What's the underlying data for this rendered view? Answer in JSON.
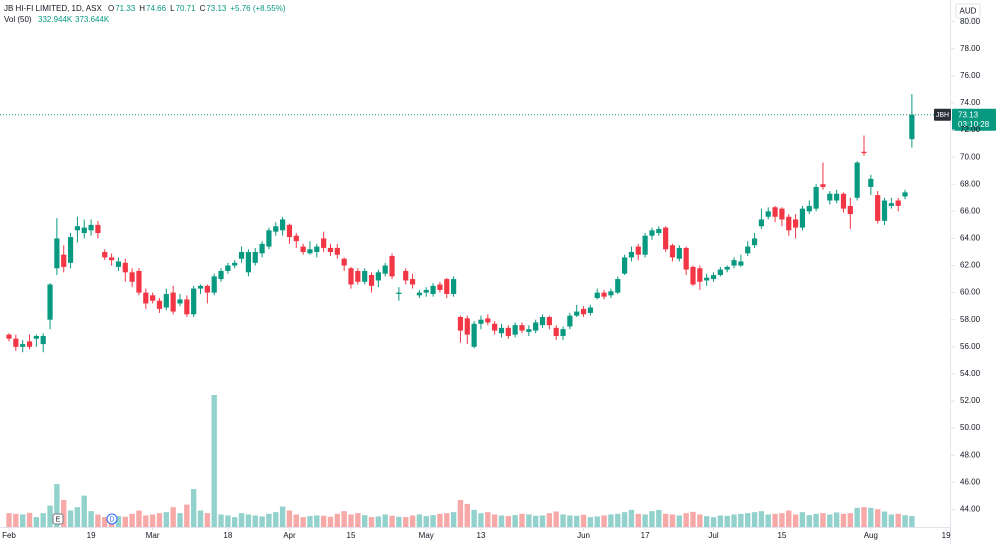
{
  "header": {
    "title": "JB HI-FI LIMITED, 1D, ASX",
    "fields": [
      {
        "key": "O",
        "value": "71.33"
      },
      {
        "key": "H",
        "value": "74.66"
      },
      {
        "key": "L",
        "value": "70.71"
      },
      {
        "key": "C",
        "value": "73.13"
      }
    ],
    "change": "+5.76 (+8.55%)",
    "volume_label": "Vol (50)",
    "volume_values": [
      "332.944K",
      "373.644K"
    ]
  },
  "currency": "AUD",
  "price_tag": {
    "symbol": "JBH",
    "price": "73.13",
    "countdown": "03:10:28"
  },
  "events": [
    {
      "label": "E"
    },
    {
      "label": "D"
    }
  ],
  "chart_data": {
    "type": "candlestick",
    "up_color": "#089981",
    "down_color": "#f23645",
    "volume_up_color": "#93d2cc",
    "volume_down_color": "#f7a9a7",
    "ylim": [
      42.7,
      81.6
    ],
    "yticks": [
      {
        "value": 44,
        "label": "44.00"
      },
      {
        "value": 46,
        "label": "46.00"
      },
      {
        "value": 48,
        "label": "48.00"
      },
      {
        "value": 50,
        "label": "50.00"
      },
      {
        "value": 52,
        "label": "52.00"
      },
      {
        "value": 54,
        "label": "54.00"
      },
      {
        "value": 56,
        "label": "56.00"
      },
      {
        "value": 58,
        "label": "58.00"
      },
      {
        "value": 60,
        "label": "60.00"
      },
      {
        "value": 62,
        "label": "62.00"
      },
      {
        "value": 64,
        "label": "64.00"
      },
      {
        "value": 66,
        "label": "66.00"
      },
      {
        "value": 68,
        "label": "68.00"
      },
      {
        "value": 70,
        "label": "70.00"
      },
      {
        "value": 72,
        "label": "72.00"
      },
      {
        "value": 74,
        "label": "74.00"
      },
      {
        "value": 76,
        "label": "76.00"
      },
      {
        "value": 78,
        "label": "78.00"
      },
      {
        "value": 80,
        "label": "80.00"
      }
    ],
    "xticks": [
      {
        "value": 0,
        "label": "Feb"
      },
      {
        "value": 12,
        "label": "19"
      },
      {
        "value": 21,
        "label": "Mar"
      },
      {
        "value": 32,
        "label": "18"
      },
      {
        "value": 41,
        "label": "Apr"
      },
      {
        "value": 50,
        "label": "15"
      },
      {
        "value": 61,
        "label": "May"
      },
      {
        "value": 69,
        "label": "13"
      },
      {
        "value": 84,
        "label": "Jun"
      },
      {
        "value": 93,
        "label": "17"
      },
      {
        "value": 103,
        "label": "Jul"
      },
      {
        "value": 113,
        "label": "15"
      },
      {
        "value": 126,
        "label": "Aug"
      },
      {
        "value": 137,
        "label": "19"
      }
    ],
    "grid": false,
    "open": [
      56.9,
      56.6,
      56.0,
      56.4,
      56.6,
      56.2,
      58.0,
      61.8,
      62.8,
      62.2,
      64.6,
      64.4,
      64.6,
      65.0,
      63.0,
      62.6,
      61.9,
      62.2,
      61.5,
      61.6,
      60.0,
      59.8,
      59.4,
      58.9,
      60.0,
      59.2,
      59.5,
      58.4,
      60.3,
      60.5,
      60.0,
      61.0,
      61.6,
      62.0,
      62.5,
      61.5,
      62.2,
      62.9,
      63.4,
      64.5,
      64.6,
      65.0,
      64.2,
      63.4,
      62.9,
      63.0,
      64.0,
      63.3,
      63.3,
      62.5,
      61.8,
      61.6,
      60.8,
      61.3,
      60.9,
      61.4,
      62.7,
      59.9,
      61.6,
      61.0,
      59.8,
      60.0,
      59.9,
      60.6,
      61.0,
      59.9,
      58.2,
      58.1,
      56.0,
      57.7,
      58.1,
      57.7,
      57.0,
      57.4,
      56.9,
      57.6,
      57.1,
      57.2,
      57.6,
      58.2,
      57.4,
      56.8,
      57.5,
      58.3,
      58.8,
      58.5,
      59.6,
      60.0,
      59.8,
      60.0,
      61.4,
      62.6,
      63.4,
      62.8,
      64.2,
      64.4,
      64.8,
      63.5,
      62.5,
      63.3,
      61.9,
      61.8,
      60.9,
      61.0,
      61.3,
      61.7,
      62.0,
      62.0,
      62.9,
      63.5,
      64.9,
      65.6,
      66.3,
      66.2,
      65.6,
      65.4,
      64.8,
      66.0,
      66.2,
      68.0,
      66.8,
      66.8,
      67.3,
      66.4,
      67.0,
      70.4,
      67.8,
      67.2,
      65.3,
      66.4,
      66.8,
      67.1,
      71.33
    ],
    "high": [
      57.0,
      56.9,
      56.5,
      56.9,
      56.9,
      57.0,
      60.7,
      65.5,
      63.5,
      64.4,
      65.6,
      65.4,
      65.4,
      65.3,
      63.2,
      62.9,
      62.6,
      62.5,
      61.8,
      61.8,
      60.3,
      60.0,
      59.6,
      60.3,
      60.5,
      59.9,
      59.8,
      60.5,
      60.6,
      60.6,
      61.4,
      61.8,
      62.2,
      62.4,
      63.4,
      63.2,
      63.3,
      63.8,
      64.8,
      65.2,
      65.6,
      65.1,
      64.4,
      63.6,
      63.8,
      63.6,
      64.5,
      63.6,
      63.6,
      62.6,
      61.9,
      61.8,
      61.8,
      61.5,
      61.7,
      62.2,
      62.9,
      60.4,
      61.8,
      61.4,
      60.2,
      60.4,
      60.7,
      60.8,
      61.1,
      61.2,
      58.3,
      58.3,
      57.9,
      58.3,
      58.4,
      57.9,
      57.7,
      57.6,
      57.8,
      57.8,
      57.6,
      58.0,
      58.4,
      58.3,
      57.6,
      57.5,
      58.5,
      59.1,
      59.0,
      59.1,
      60.3,
      60.2,
      60.3,
      61.2,
      62.8,
      63.4,
      63.6,
      64.4,
      64.8,
      64.9,
      64.9,
      63.6,
      63.5,
      63.4,
      62.0,
      62.0,
      61.4,
      61.5,
      61.9,
      62.0,
      62.6,
      62.8,
      63.8,
      64.4,
      66.2,
      66.3,
      66.4,
      66.3,
      65.8,
      65.8,
      66.4,
      66.8,
      68.0,
      69.6,
      67.5,
      67.6,
      67.4,
      67.0,
      69.7,
      71.6,
      68.7,
      67.5,
      67.0,
      67.0,
      67.0,
      67.6,
      74.66
    ],
    "low": [
      56.4,
      55.7,
      55.6,
      55.8,
      56.0,
      55.6,
      57.3,
      61.3,
      61.5,
      61.8,
      63.7,
      64.0,
      64.2,
      64.0,
      62.4,
      62.0,
      61.6,
      60.8,
      60.4,
      59.8,
      58.8,
      59.2,
      58.5,
      58.7,
      58.4,
      59.0,
      58.2,
      58.2,
      59.9,
      59.2,
      59.8,
      60.8,
      61.4,
      61.8,
      62.2,
      61.2,
      62.0,
      62.6,
      63.2,
      64.2,
      64.2,
      63.6,
      63.3,
      62.8,
      62.8,
      62.6,
      63.0,
      62.7,
      62.5,
      61.6,
      60.3,
      60.6,
      60.6,
      60.0,
      60.4,
      61.2,
      61.0,
      59.4,
      60.6,
      60.3,
      59.6,
      59.7,
      59.7,
      60.0,
      59.6,
      59.7,
      56.3,
      56.2,
      55.9,
      57.3,
      57.6,
      56.9,
      56.7,
      56.6,
      56.7,
      57.0,
      56.8,
      57.0,
      57.4,
      57.3,
      56.5,
      56.5,
      57.3,
      58.2,
      58.2,
      58.3,
      59.5,
      59.5,
      59.6,
      59.9,
      61.3,
      62.3,
      62.4,
      62.6,
      63.9,
      64.2,
      63.0,
      62.3,
      62.3,
      61.3,
      60.5,
      60.2,
      60.5,
      60.8,
      61.2,
      61.5,
      61.8,
      61.9,
      62.7,
      63.3,
      64.7,
      65.4,
      65.2,
      64.9,
      64.2,
      64.0,
      64.6,
      65.8,
      66.0,
      67.6,
      66.5,
      66.6,
      65.9,
      64.7,
      66.8,
      70.1,
      67.2,
      65.1,
      65.0,
      66.2,
      66.0,
      66.9,
      70.71
    ],
    "close": [
      56.6,
      56.0,
      56.2,
      56.0,
      56.8,
      56.8,
      60.6,
      64.0,
      61.9,
      64.1,
      64.9,
      64.8,
      65.0,
      64.4,
      62.6,
      62.4,
      62.3,
      61.5,
      60.8,
      60.0,
      59.2,
      59.4,
      58.8,
      59.9,
      58.6,
      59.5,
      58.4,
      60.3,
      60.5,
      60.0,
      61.2,
      61.6,
      62.0,
      62.2,
      63.0,
      63.0,
      63.0,
      63.6,
      64.6,
      64.9,
      65.4,
      64.1,
      63.8,
      63.0,
      63.2,
      63.4,
      63.3,
      63.0,
      62.8,
      62.0,
      60.6,
      60.8,
      61.6,
      60.5,
      61.5,
      62.0,
      61.2,
      60.0,
      60.9,
      60.6,
      60.0,
      60.2,
      60.5,
      60.2,
      59.9,
      61.0,
      57.2,
      56.9,
      57.7,
      58.0,
      57.8,
      57.2,
      57.4,
      56.8,
      57.6,
      57.2,
      57.3,
      57.8,
      58.2,
      57.6,
      56.8,
      57.3,
      58.3,
      58.6,
      58.4,
      58.9,
      60.0,
      59.7,
      60.1,
      61.0,
      62.6,
      63.0,
      62.8,
      64.2,
      64.6,
      64.7,
      63.2,
      62.6,
      63.3,
      61.7,
      60.6,
      60.8,
      61.1,
      61.3,
      61.7,
      61.9,
      62.4,
      62.3,
      63.4,
      64.0,
      65.4,
      66.0,
      65.6,
      65.4,
      64.6,
      64.8,
      66.2,
      66.4,
      67.8,
      67.8,
      67.3,
      67.3,
      66.2,
      65.8,
      69.6,
      70.3,
      68.4,
      65.3,
      66.8,
      66.6,
      66.4,
      67.4,
      73.13
    ],
    "volume": [
      420000,
      400000,
      380000,
      430000,
      300000,
      420000,
      650000,
      1300000,
      820000,
      500000,
      600000,
      950000,
      480000,
      380000,
      300000,
      350000,
      330000,
      310000,
      400000,
      500000,
      350000,
      380000,
      420000,
      450000,
      600000,
      420000,
      680000,
      1150000,
      500000,
      420000,
      4000000,
      380000,
      350000,
      300000,
      420000,
      380000,
      350000,
      320000,
      400000,
      450000,
      620000,
      500000,
      380000,
      300000,
      330000,
      350000,
      340000,
      310000,
      400000,
      480000,
      380000,
      420000,
      360000,
      300000,
      320000,
      380000,
      340000,
      310000,
      300000,
      350000,
      380000,
      330000,
      360000,
      400000,
      420000,
      450000,
      820000,
      700000,
      520000,
      420000,
      450000,
      380000,
      350000,
      330000,
      360000,
      400000,
      380000,
      340000,
      350000,
      420000,
      470000,
      380000,
      350000,
      340000,
      370000,
      300000,
      320000,
      350000,
      380000,
      400000,
      450000,
      520000,
      400000,
      380000,
      480000,
      520000,
      400000,
      380000,
      350000,
      420000,
      460000,
      380000,
      330000,
      300000,
      350000,
      340000,
      380000,
      400000,
      420000,
      450000,
      480000,
      380000,
      400000,
      420000,
      500000,
      380000,
      450000,
      360000,
      400000,
      420000,
      380000,
      440000,
      400000,
      420000,
      580000,
      600000,
      580000,
      540000,
      470000,
      380000,
      400000,
      360000,
      332944
    ]
  }
}
